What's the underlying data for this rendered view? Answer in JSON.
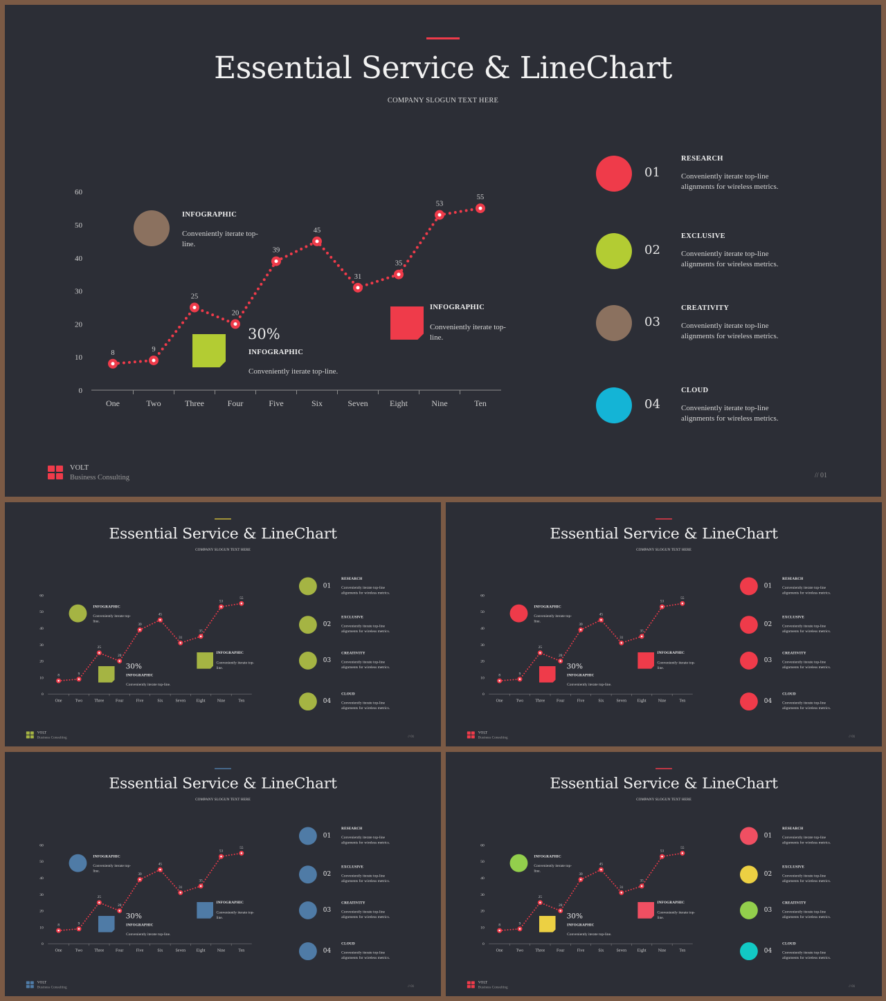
{
  "slide": {
    "title": "Essential Service & LineChart",
    "subtitle": "COMPANY SLOGUN TEXT HERE",
    "brand_name": "VOLT",
    "brand_tagline": "Business  Consulting",
    "page_number": "// 01",
    "note_circle": {
      "title": "INFOGRAPHIC",
      "text": "Conveniently iterate top-line."
    },
    "note_square_left": {
      "percent": "30%",
      "title": "INFOGRAPHIC",
      "text": "Conveniently iterate top-line."
    },
    "note_square_right": {
      "title": "INFOGRAPHIC",
      "text": "Conveniently iterate top-line."
    },
    "features": [
      {
        "number": "01",
        "title": "RESEARCH",
        "text": "Conveniently iterate top-line alignments for wireless metrics."
      },
      {
        "number": "02",
        "title": "EXCLUSIVE",
        "text": "Conveniently iterate top-line alignments for wireless metrics."
      },
      {
        "number": "03",
        "title": "CREATIVITY",
        "text": "Conveniently iterate top-line alignments for wireless metrics."
      },
      {
        "number": "04",
        "title": "CLOUD",
        "text": "Conveniently iterate top-line alignments for wireless metrics."
      }
    ]
  },
  "variants": [
    {
      "accent": "#ef3b4a",
      "line": "#ef3b4a",
      "circle_note": "#8b715f",
      "square_left": "#b3cc33",
      "square_right": "#ef3b4a",
      "features": [
        "#ef3b4a",
        "#b3cc33",
        "#8b715f",
        "#14b4d6"
      ],
      "logo": "#ef3b4a"
    },
    {
      "accent": "#c9b63a",
      "line": "#ef3b4a",
      "circle_note": "#a5b443",
      "square_left": "#a5b443",
      "square_right": "#a5b443",
      "features": [
        "#a5b443",
        "#a5b443",
        "#a5b443",
        "#a5b443"
      ],
      "logo": "#a5b443"
    },
    {
      "accent": "#ef3b4a",
      "line": "#ef3b4a",
      "circle_note": "#ef3b4a",
      "square_left": "#ef3b4a",
      "square_right": "#ef3b4a",
      "features": [
        "#ef3b4a",
        "#ef3b4a",
        "#ef3b4a",
        "#ef3b4a"
      ],
      "logo": "#ef3b4a"
    },
    {
      "accent": "#4f7ba6",
      "line": "#ef3b4a",
      "circle_note": "#4f7ba6",
      "square_left": "#4f7ba6",
      "square_right": "#4f7ba6",
      "features": [
        "#4f7ba6",
        "#4f7ba6",
        "#4f7ba6",
        "#4f7ba6"
      ],
      "logo": "#4f7ba6"
    },
    {
      "accent": "#ef3b4a",
      "line": "#ef3b4a",
      "circle_note": "#93cf4c",
      "square_left": "#ecd043",
      "square_right": "#f04f62",
      "features": [
        "#f04f62",
        "#ecd043",
        "#93cf4c",
        "#12c9c4"
      ],
      "logo": "#ef3b4a"
    }
  ],
  "chart_data": {
    "type": "line",
    "categories": [
      "One",
      "Two",
      "Three",
      "Four",
      "Five",
      "Six",
      "Seven",
      "Eight",
      "Nine",
      "Ten"
    ],
    "values": [
      8,
      9,
      25,
      20,
      39,
      45,
      31,
      35,
      53,
      55
    ],
    "data_labels": [
      "8",
      "9",
      "25",
      "20",
      "39",
      "45",
      "31",
      "35",
      "53",
      "55"
    ],
    "ylim": [
      0,
      60
    ],
    "yticks": [
      "0",
      "10",
      "20",
      "30",
      "40",
      "50",
      "60"
    ],
    "line_style": "dotted",
    "grid": false
  }
}
